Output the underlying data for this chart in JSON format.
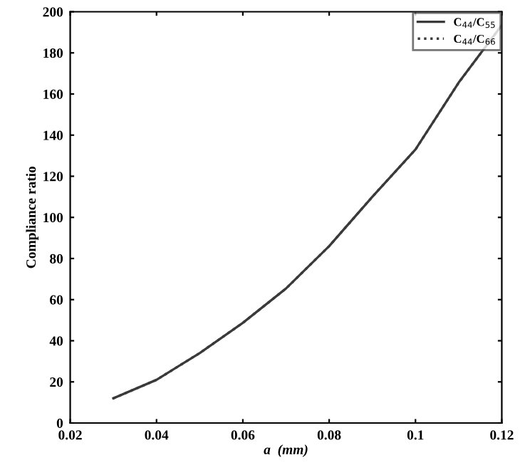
{
  "chart_data": {
    "type": "line",
    "xlabel": "a  (mm)",
    "ylabel": "Compliance ratio",
    "x": [
      0.03,
      0.04,
      0.05,
      0.06,
      0.07,
      0.08,
      0.09,
      0.1,
      0.11,
      0.12
    ],
    "series": [
      {
        "name": "C$_{44}$/C$_{55}$",
        "color": "#3a3a3a",
        "line_style": "solid",
        "values": [
          12,
          21,
          34,
          48.7,
          65.4,
          86,
          110,
          133,
          165.5,
          193.5
        ]
      },
      {
        "name": "C$_{44}$/C$_{66}$",
        "color": "#3a3a3a",
        "line_style": "dotted",
        "values": [
          12,
          21,
          34,
          48.7,
          65.4,
          86,
          110,
          133,
          165.5,
          193.5
        ]
      }
    ],
    "xlim": [
      0.02,
      0.12
    ],
    "xticks": [
      0.02,
      0.04,
      0.06,
      0.08,
      0.1,
      0.12
    ],
    "ylim": [
      0,
      200
    ],
    "yticks": [
      0,
      20,
      40,
      60,
      80,
      100,
      120,
      140,
      160,
      180,
      200
    ],
    "grid": false,
    "legend": "top right"
  }
}
